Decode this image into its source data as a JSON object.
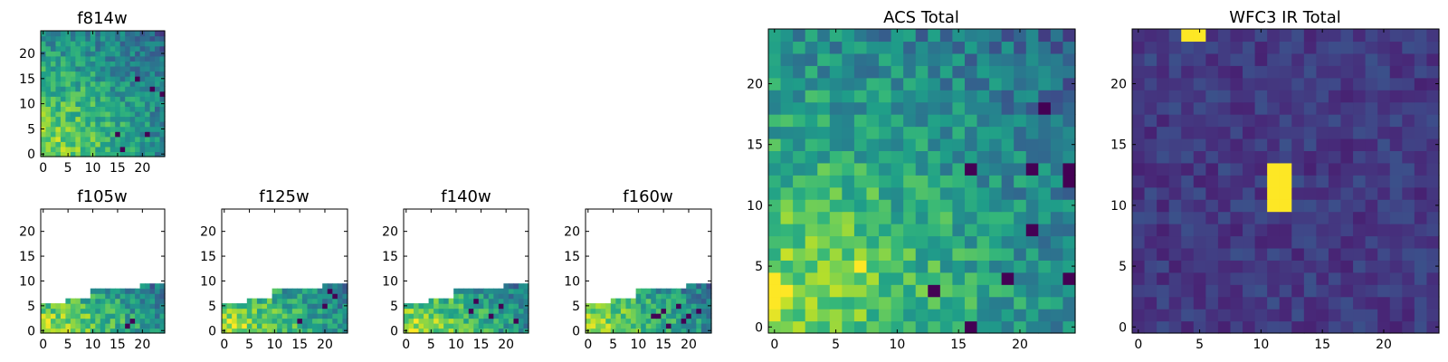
{
  "figure_title": "",
  "colormap": "viridis",
  "colormap_stops": [
    "#440154",
    "#482878",
    "#3e4a89",
    "#31688e",
    "#26828e",
    "#1f9e89",
    "#35b779",
    "#6ece58",
    "#b5de2b",
    "#fde725"
  ],
  "chart_data": [
    {
      "id": "f814w",
      "type": "heatmap",
      "title": "f814w",
      "grid_size": [
        25,
        25
      ],
      "xlim": [
        -0.5,
        24.5
      ],
      "ylim": [
        -0.5,
        24.5
      ],
      "xticks": [
        0,
        5,
        10,
        15,
        20
      ],
      "yticks": [
        0,
        5,
        10,
        15,
        20
      ],
      "coverage": "full",
      "pattern": "corner_gradient",
      "seed": 11,
      "hot_spots": [],
      "dark_cells": [
        [
          16,
          1
        ],
        [
          19,
          15
        ],
        [
          22,
          13
        ],
        [
          24,
          12
        ],
        [
          21,
          4
        ],
        [
          15,
          4
        ]
      ]
    },
    {
      "id": "f105w",
      "type": "heatmap",
      "title": "f105w",
      "grid_size": [
        25,
        25
      ],
      "xlim": [
        -0.5,
        24.5
      ],
      "ylim": [
        -0.5,
        24.5
      ],
      "xticks": [
        0,
        5,
        10,
        15,
        20
      ],
      "yticks": [
        0,
        5,
        10,
        15,
        20
      ],
      "coverage": "lower_wedge",
      "pattern": "wedge_gradient",
      "seed": 23,
      "hot_spots": [],
      "dark_cells": [
        [
          17,
          1
        ],
        [
          18,
          2
        ]
      ]
    },
    {
      "id": "f125w",
      "type": "heatmap",
      "title": "f125w",
      "grid_size": [
        25,
        25
      ],
      "xlim": [
        -0.5,
        24.5
      ],
      "ylim": [
        -0.5,
        24.5
      ],
      "xticks": [
        0,
        5,
        10,
        15,
        20
      ],
      "yticks": [
        0,
        5,
        10,
        15,
        20
      ],
      "coverage": "lower_wedge",
      "pattern": "wedge_gradient",
      "seed": 37,
      "hot_spots": [],
      "dark_cells": [
        [
          21,
          8
        ],
        [
          22,
          7
        ],
        [
          20,
          5
        ],
        [
          15,
          2
        ]
      ]
    },
    {
      "id": "f140w",
      "type": "heatmap",
      "title": "f140w",
      "grid_size": [
        25,
        25
      ],
      "xlim": [
        -0.5,
        24.5
      ],
      "ylim": [
        -0.5,
        24.5
      ],
      "xticks": [
        0,
        5,
        10,
        15,
        20
      ],
      "yticks": [
        0,
        5,
        10,
        15,
        20
      ],
      "coverage": "lower_wedge",
      "pattern": "wedge_gradient",
      "seed": 41,
      "hot_spots": [],
      "dark_cells": [
        [
          14,
          6
        ],
        [
          19,
          5
        ],
        [
          17,
          3
        ],
        [
          13,
          4
        ],
        [
          22,
          2
        ]
      ]
    },
    {
      "id": "f160w",
      "type": "heatmap",
      "title": "f160w",
      "grid_size": [
        25,
        25
      ],
      "xlim": [
        -0.5,
        24.5
      ],
      "ylim": [
        -0.5,
        24.5
      ],
      "xticks": [
        0,
        5,
        10,
        15,
        20
      ],
      "yticks": [
        0,
        5,
        10,
        15,
        20
      ],
      "coverage": "lower_wedge",
      "pattern": "wedge_gradient",
      "seed": 53,
      "hot_spots": [],
      "dark_cells": [
        [
          13,
          3
        ],
        [
          14,
          3
        ],
        [
          15,
          4
        ],
        [
          18,
          5
        ],
        [
          19,
          2
        ],
        [
          20,
          3
        ],
        [
          22,
          4
        ],
        [
          16,
          1
        ]
      ]
    },
    {
      "id": "acs_total",
      "type": "heatmap",
      "title": "ACS Total",
      "grid_size": [
        25,
        25
      ],
      "xlim": [
        -0.5,
        24.5
      ],
      "ylim": [
        -0.5,
        24.5
      ],
      "xticks": [
        0,
        5,
        10,
        15,
        20
      ],
      "yticks": [
        0,
        5,
        10,
        15,
        20
      ],
      "coverage": "full",
      "pattern": "corner_gradient",
      "seed": 67,
      "hot_spots": [
        [
          0,
          2
        ],
        [
          0,
          3
        ],
        [
          0,
          4
        ],
        [
          1,
          3
        ],
        [
          7,
          5
        ]
      ],
      "dark_cells": [
        [
          22,
          18
        ],
        [
          16,
          13
        ],
        [
          21,
          13
        ],
        [
          24,
          13
        ],
        [
          24,
          12
        ],
        [
          21,
          8
        ],
        [
          13,
          3
        ],
        [
          16,
          0
        ],
        [
          19,
          4
        ],
        [
          24,
          4
        ]
      ]
    },
    {
      "id": "wfc3_ir_total",
      "type": "heatmap",
      "title": "WFC3 IR Total",
      "grid_size": [
        25,
        25
      ],
      "xlim": [
        -0.5,
        24.5
      ],
      "ylim": [
        -0.5,
        24.5
      ],
      "xticks": [
        0,
        5,
        10,
        15,
        20
      ],
      "yticks": [
        0,
        5,
        10,
        15,
        20
      ],
      "coverage": "full",
      "pattern": "dark_noise",
      "seed": 79,
      "hot_spots": [
        [
          11,
          10
        ],
        [
          11,
          11
        ],
        [
          11,
          12
        ],
        [
          11,
          13
        ],
        [
          12,
          10
        ],
        [
          12,
          11
        ],
        [
          12,
          12
        ],
        [
          12,
          13
        ],
        [
          4,
          24
        ],
        [
          5,
          24
        ]
      ],
      "dark_cells": []
    }
  ]
}
